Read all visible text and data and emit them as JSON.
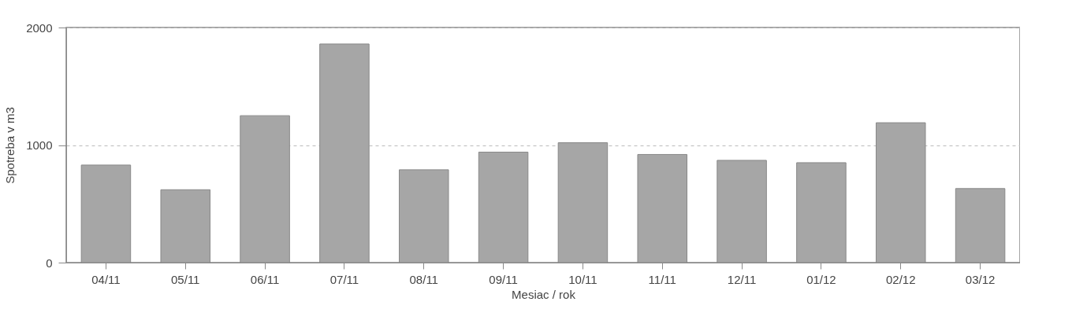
{
  "chart_data": {
    "type": "bar",
    "xlabel": "Mesiac / rok",
    "ylabel": "Spotreba v m3",
    "categories": [
      "04/11",
      "05/11",
      "06/11",
      "07/11",
      "08/11",
      "09/11",
      "10/11",
      "11/11",
      "12/11",
      "01/12",
      "02/12",
      "03/12"
    ],
    "values": [
      830,
      620,
      1250,
      1860,
      790,
      940,
      1020,
      920,
      870,
      850,
      1190,
      630
    ],
    "color": "#a6a6a6",
    "ylim": [
      0,
      2000
    ],
    "yticks": [
      0,
      1000,
      2000
    ],
    "grid": "y"
  }
}
